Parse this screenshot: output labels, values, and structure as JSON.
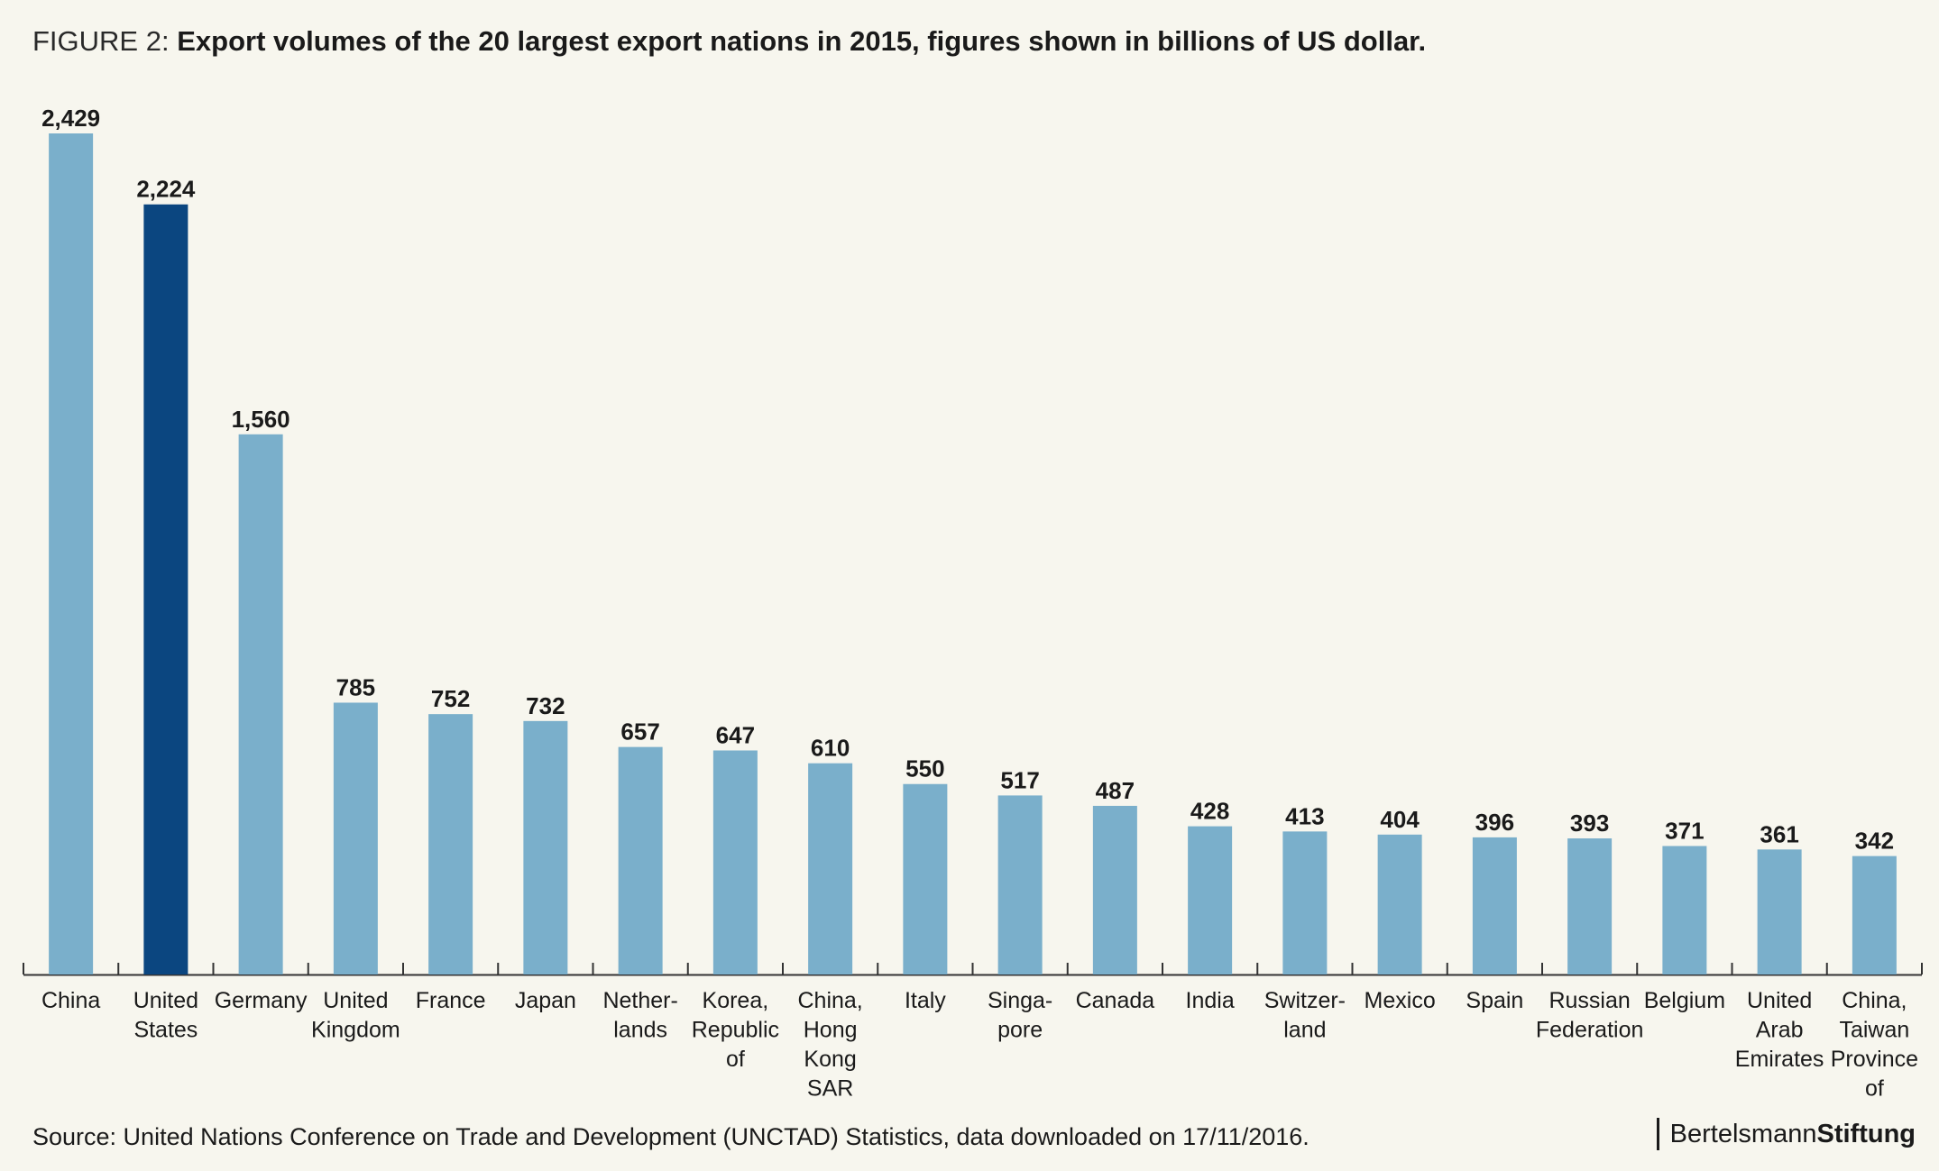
{
  "header": {
    "figure_prefix": "FIGURE 2:",
    "title": "Export volumes of the 20 largest export nations in 2015, figures shown in billions of US dollar."
  },
  "footer": {
    "source": "Source: United Nations Conference on Trade and Development (UNCTAD) Statistics, data downloaded on 17/11/2016.",
    "brand_regular": "Bertelsmann",
    "brand_bold": "Stiftung"
  },
  "chart_data": {
    "type": "bar",
    "title": "Export volumes of the 20 largest export nations in 2015, figures shown in billions of US dollar.",
    "xlabel": "",
    "ylabel": "",
    "ylim": [
      0,
      2429
    ],
    "grid": false,
    "legend": "none",
    "categories": [
      [
        "China"
      ],
      [
        "United",
        "States"
      ],
      [
        "Germany"
      ],
      [
        "United",
        "Kingdom"
      ],
      [
        "France"
      ],
      [
        "Japan"
      ],
      [
        "Nether-",
        "lands"
      ],
      [
        "Korea,",
        "Republic",
        "of"
      ],
      [
        "China,",
        "Hong",
        "Kong",
        "SAR"
      ],
      [
        "Italy"
      ],
      [
        "Singa-",
        "pore"
      ],
      [
        "Canada"
      ],
      [
        "India"
      ],
      [
        "Switzer-",
        "land"
      ],
      [
        "Mexico"
      ],
      [
        "Spain"
      ],
      [
        "Russian",
        "Federation"
      ],
      [
        "Belgium"
      ],
      [
        "United",
        "Arab",
        "Emirates"
      ],
      [
        "China,",
        "Taiwan",
        "Province",
        "of"
      ]
    ],
    "values": [
      2429,
      2224,
      1560,
      785,
      752,
      732,
      657,
      647,
      610,
      550,
      517,
      487,
      428,
      413,
      404,
      396,
      393,
      371,
      361,
      342
    ],
    "value_labels": [
      "2,429",
      "2,224",
      "1,560",
      "785",
      "752",
      "732",
      "657",
      "647",
      "610",
      "550",
      "517",
      "487",
      "428",
      "413",
      "404",
      "396",
      "393",
      "371",
      "361",
      "342"
    ],
    "highlight": "United States",
    "colors": {
      "bar": "#7aafcb",
      "highlight_bar": "#0b4680",
      "axis": "#333333",
      "background": "#f7f6ee"
    }
  }
}
